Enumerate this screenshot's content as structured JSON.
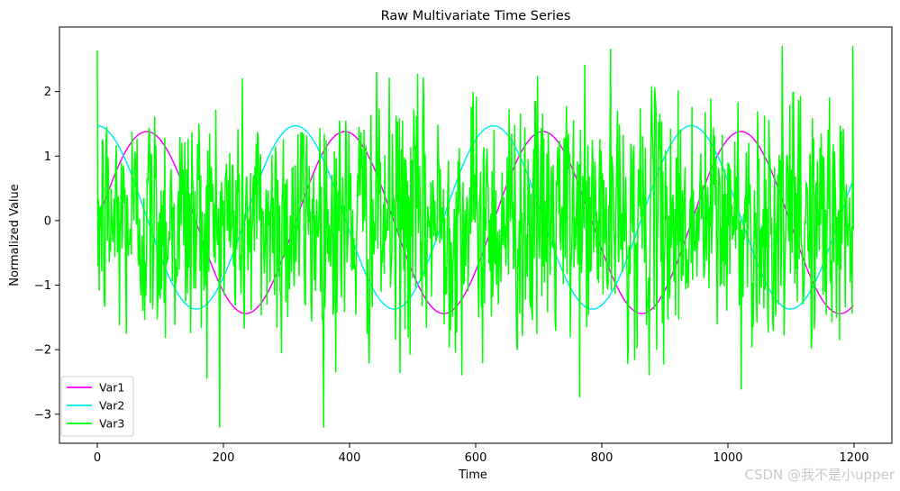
{
  "chart_data": {
    "type": "line",
    "title": "Raw Multivariate Time Series",
    "xlabel": "Time",
    "ylabel": "Normalized Value",
    "xlim": [
      -60,
      1260
    ],
    "ylim": [
      -3.45,
      3.0
    ],
    "xticks": [
      0,
      200,
      400,
      600,
      800,
      1000,
      1200
    ],
    "yticks": [
      -3,
      -2,
      -1,
      0,
      1,
      2
    ],
    "grid": false,
    "legend_position": "lower-left",
    "n_points": 1200,
    "series": [
      {
        "name": "Var1",
        "color": "#ff00ff",
        "kind": "sinusoid",
        "amplitude": 1.41,
        "period": 314,
        "phase_x": 0,
        "offset": -0.03
      },
      {
        "name": "Var2",
        "color": "#00eeee",
        "kind": "sinusoid",
        "amplitude": 1.42,
        "period": 314,
        "phase_x": -78.5,
        "offset": 0.05
      },
      {
        "name": "Var3",
        "color": "#00ff00",
        "kind": "noise",
        "stdev": 0.95,
        "min": -3.2,
        "max": 2.7
      }
    ]
  },
  "watermark": "CSDN @我不是小upper"
}
